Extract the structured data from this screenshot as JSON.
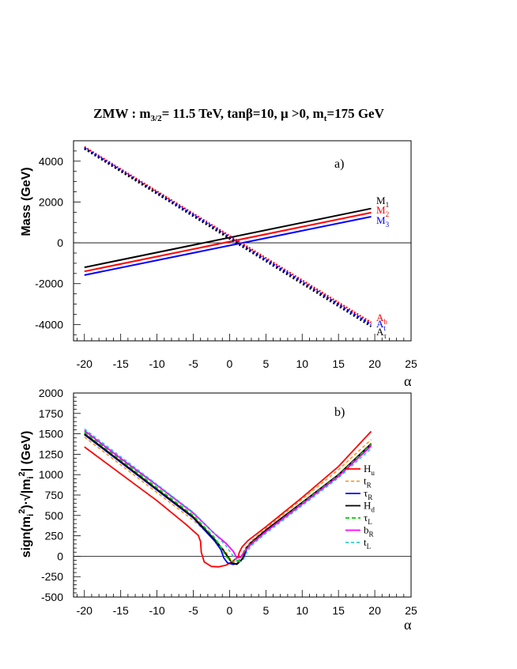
{
  "title": {
    "prefix": "ZMW : m",
    "m_sub": "3/2",
    "after_m": "= 11.5 TeV, tan",
    "beta": "β",
    "after_beta": "=10, ",
    "mu": "μ",
    "after_mu": " >0, m",
    "t_sub": "t",
    "tail": "=175 GeV"
  },
  "chart_data": [
    {
      "type": "line",
      "panel_label": "a)",
      "ylabel": "Mass (GeV)",
      "xlabel": "α",
      "xlim": [
        -21.5,
        25
      ],
      "ylim": [
        -4800,
        5000
      ],
      "xticks": [
        -20,
        -15,
        -10,
        -5,
        0,
        5,
        10,
        15,
        20,
        25
      ],
      "yticks": [
        -4000,
        -2000,
        0,
        2000,
        4000
      ],
      "zero_line": true,
      "series": [
        {
          "name": "M",
          "sub": "1",
          "color": "#000000",
          "dash": "",
          "width": 2,
          "x": [
            -20,
            19.5
          ],
          "y": [
            -1200,
            1680
          ]
        },
        {
          "name": "M",
          "sub": "2",
          "color": "#ff0000",
          "dash": "",
          "width": 2,
          "x": [
            -20,
            19.5
          ],
          "y": [
            -1400,
            1480
          ]
        },
        {
          "name": "M",
          "sub": "3",
          "color": "#0000ff",
          "dash": "",
          "width": 2,
          "x": [
            -20,
            19.5
          ],
          "y": [
            -1580,
            1280
          ]
        },
        {
          "name": "A",
          "sub": "b",
          "color": "#ff0000",
          "dash": "2,2",
          "width": 2.2,
          "x": [
            -20,
            19.5
          ],
          "y": [
            4700,
            -3900
          ]
        },
        {
          "name": "A",
          "sub": "t",
          "color": "#0000ff",
          "dash": "3,2",
          "width": 2.2,
          "x": [
            -20,
            19.5
          ],
          "y": [
            4650,
            -4000
          ]
        },
        {
          "name": "A",
          "sub": "τ",
          "color": "#000000",
          "dash": "2,3",
          "width": 2.2,
          "x": [
            -20,
            19.5
          ],
          "y": [
            4600,
            -4100
          ]
        }
      ]
    },
    {
      "type": "line",
      "panel_label": "b)",
      "ylabel_parts": [
        "sign(m",
        "i",
        "2",
        ")·√|m",
        "i",
        "2",
        "| (GeV)"
      ],
      "xlabel": "α",
      "xlim": [
        -21.5,
        25
      ],
      "ylim": [
        -500,
        2000
      ],
      "xticks": [
        -20,
        -15,
        -10,
        -5,
        0,
        5,
        10,
        15,
        20,
        25
      ],
      "yticks": [
        -500,
        -250,
        0,
        250,
        500,
        750,
        1000,
        1250,
        1500,
        1750,
        2000
      ],
      "zero_line": true,
      "series": [
        {
          "name": "H",
          "sub": "u",
          "color": "#ff0000",
          "dash": "",
          "width": 1.8,
          "x": [
            -20,
            -15,
            -10,
            -6,
            -4.3,
            -4.0,
            -3.9,
            -3.5,
            -2.5,
            -1.5,
            -0.5,
            0.3,
            0.8,
            1.2,
            1.3,
            1.7,
            2.5,
            5,
            10,
            15,
            19.5
          ],
          "y": [
            1340,
            1010,
            680,
            390,
            255,
            180,
            50,
            -70,
            -125,
            -130,
            -110,
            -70,
            -35,
            -10,
            40,
            110,
            190,
            360,
            720,
            1100,
            1530
          ]
        },
        {
          "name": "t",
          "sub": "R",
          "color": "#ff8c00",
          "dash": "4,3",
          "width": 1.4,
          "x": [
            -20,
            -15,
            -10,
            -5,
            -2,
            -0.5,
            0.3,
            1.0,
            1.6,
            2.0,
            3,
            5,
            10,
            15,
            19.5
          ],
          "y": [
            1460,
            1120,
            780,
            440,
            200,
            50,
            -60,
            -80,
            -30,
            80,
            190,
            340,
            700,
            1060,
            1430
          ]
        },
        {
          "name": "τ",
          "sub": "R",
          "color": "#0000ff",
          "dash": "",
          "width": 1.8,
          "x": [
            -20,
            -15,
            -10,
            -5,
            -2,
            -1.2,
            -0.8,
            -0.3,
            0.5,
            1.0,
            1.5,
            2.0,
            2.4,
            3,
            5,
            10,
            15,
            19.5
          ],
          "y": [
            1490,
            1150,
            810,
            470,
            180,
            80,
            -20,
            -80,
            -100,
            -90,
            -60,
            -5,
            100,
            170,
            310,
            650,
            990,
            1360
          ]
        },
        {
          "name": "H",
          "sub": "d",
          "color": "#000000",
          "dash": "",
          "width": 1.8,
          "x": [
            -20,
            -15,
            -10,
            -5,
            -2,
            -1.0,
            -0.3,
            0.3,
            1.0,
            1.8,
            2.3,
            3,
            5,
            10,
            15,
            19.5
          ],
          "y": [
            1500,
            1160,
            820,
            480,
            200,
            90,
            0,
            -80,
            -100,
            -30,
            100,
            170,
            320,
            660,
            1000,
            1380
          ]
        },
        {
          "name": "τ",
          "sub": "L",
          "color": "#00cc00",
          "dash": "5,3",
          "width": 1.8,
          "x": [
            -20,
            -15,
            -10,
            -5,
            -2,
            -1.2,
            -0.5,
            0.2,
            0.8,
            1.4,
            2.0,
            3,
            5,
            10,
            15,
            19.5
          ],
          "y": [
            1520,
            1180,
            840,
            500,
            220,
            110,
            0,
            -60,
            -70,
            -40,
            60,
            160,
            300,
            650,
            990,
            1370
          ]
        },
        {
          "name": "b",
          "sub": "R",
          "color": "#ff00ff",
          "dash": "",
          "width": 1.8,
          "x": [
            -20,
            -15,
            -10,
            -5,
            -2,
            -0.5,
            0.5,
            1.0,
            1.5,
            2.0,
            3,
            5,
            10,
            15,
            19.5
          ],
          "y": [
            1540,
            1200,
            870,
            530,
            270,
            160,
            60,
            -20,
            -15,
            50,
            150,
            300,
            640,
            980,
            1350
          ]
        },
        {
          "name": "t",
          "sub": "L",
          "color": "#00cccc",
          "dash": "4,3",
          "width": 1.4,
          "x": [
            -20,
            -15,
            -10,
            -5,
            -2,
            -0.5,
            0.5,
            1.2,
            1.8,
            2.3,
            3,
            5,
            10,
            15,
            19.5
          ],
          "y": [
            1560,
            1220,
            880,
            540,
            270,
            130,
            0,
            -70,
            -60,
            40,
            130,
            280,
            620,
            960,
            1320
          ]
        }
      ]
    }
  ]
}
